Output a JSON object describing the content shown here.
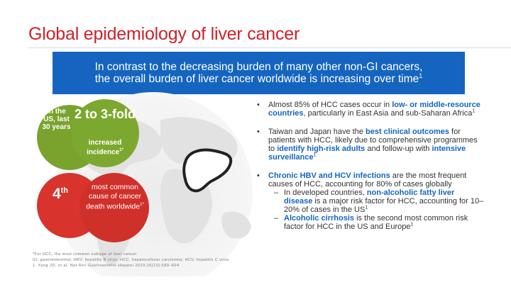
{
  "title": "Global epidemiology of liver cancer",
  "banner": {
    "line1": "In contrast to the decreasing burden of many other non-GI cancers,",
    "line2": "the overall burden of liver cancer worldwide is increasing over time",
    "sup": "1"
  },
  "stat1": {
    "label": "In the US, last 30 years",
    "headline": "2 to 3-fold",
    "sub": "increased incidence",
    "sup": "1*"
  },
  "stat2": {
    "rank": "4",
    "rank_suffix": "th",
    "text": "most common cause of cancer death worldwide",
    "sup": "1*"
  },
  "bullets": [
    {
      "dot": "•",
      "parts": [
        "Almost 85% of HCC cases occur in ",
        "low- or middle-resource countries",
        ", particularly in East Asia and sub-Saharan Africa",
        "1"
      ]
    },
    {
      "dot": "•",
      "parts": [
        "Taiwan and Japan have the ",
        "best clinical outcomes",
        " for patients with HCC, likely due to comprehensive programmes to ",
        "identify high-risk adults",
        " and follow-up with ",
        "intensive surveillance",
        "1"
      ]
    },
    {
      "dot": "•",
      "parts": [
        "Chronic HBV and HCV infections",
        " are the most frequent causes of HCC, accounting for 80% of cases globally"
      ],
      "subs": [
        {
          "dash": "–",
          "parts": [
            "In developed countries, ",
            "non-alcoholic fatty liver disease",
            " is a major risk factor for HCC, accounting for 10–20% of cases in the US",
            "1"
          ]
        },
        {
          "dash": "–",
          "parts": [
            "Alcoholic cirrhosis",
            " is the second most common risk factor for HCC in the US and Europe",
            "1"
          ]
        }
      ]
    }
  ],
  "footnote": {
    "line1": "*For HCC, the most common subtype of liver cancer",
    "line2": "GI, gastrointestinal; HBV, hepatitis B virus; HCC, hepatocellular carcinoma; HCV, hepatitis C virus"
  },
  "reference": "1. Yang JD, et al. Nat Rev Gastroenterol Hepatol 2019;16(10):589–604",
  "colors": {
    "title": "#cc2229",
    "banner": "#1565c0",
    "green": "#7da82f",
    "red": "#d0302a",
    "highlight": "#1565c0"
  }
}
